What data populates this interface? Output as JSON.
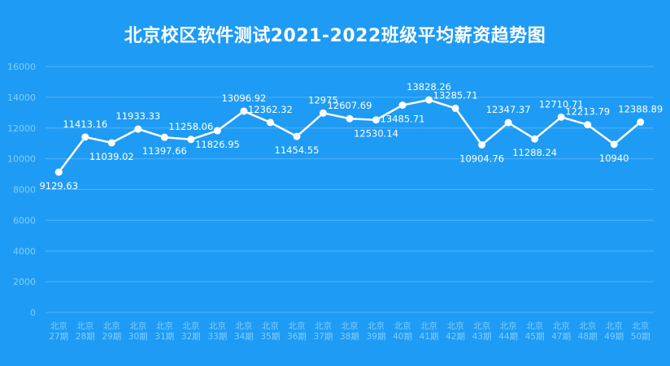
{
  "title": "北京校区软件测试2021-2022班级平均薪资趋势图",
  "colors": {
    "background": "#1E9BF5",
    "line": "#FFFFFF",
    "grid": "#4FB5FA",
    "axis_text": "#7FD0FF",
    "data_label": "#FFFFFF"
  },
  "chart_data": {
    "type": "line",
    "title": "北京校区软件测试2021-2022班级平均薪资趋势图",
    "categories": [
      [
        "北京",
        "27期"
      ],
      [
        "北京",
        "28期"
      ],
      [
        "北京",
        "29期"
      ],
      [
        "北京",
        "30期"
      ],
      [
        "北京",
        "31期"
      ],
      [
        "北京",
        "32期"
      ],
      [
        "北京",
        "33期"
      ],
      [
        "北京",
        "34期"
      ],
      [
        "北京",
        "35期"
      ],
      [
        "北京",
        "36期"
      ],
      [
        "北京",
        "37期"
      ],
      [
        "北京",
        "38期"
      ],
      [
        "北京",
        "39期"
      ],
      [
        "北京",
        "40期"
      ],
      [
        "北京",
        "41期"
      ],
      [
        "北京",
        "42期"
      ],
      [
        "北京",
        "43期"
      ],
      [
        "北京",
        "44期"
      ],
      [
        "北京",
        "45期"
      ],
      [
        "北京",
        "47期"
      ],
      [
        "北京",
        "48期"
      ],
      [
        "北京",
        "49期"
      ],
      [
        "北京",
        "50期"
      ]
    ],
    "values": [
      9129.63,
      11413.16,
      11039.02,
      11933.33,
      11397.66,
      11258.06,
      11826.95,
      13096.92,
      12362.32,
      11454.55,
      12975,
      12607.69,
      12530.14,
      13485.71,
      13828.26,
      13285.71,
      10904.76,
      12347.37,
      11288.24,
      12710.71,
      12213.79,
      10940,
      12388.89
    ],
    "data_labels": [
      "9129.63",
      "11413.16",
      "11039.02",
      "11933.33",
      "11397.66",
      "11258.06",
      "11826.95",
      "13096.92",
      "12362.32",
      "11454.55",
      "12975",
      "12607.69",
      "12530.14",
      "13485.71",
      "13828.26",
      "13285.71",
      "10904.76",
      "12347.37",
      "11288.24",
      "12710.71",
      "12213.79",
      "10940",
      "12388.89"
    ],
    "label_side": [
      "below",
      "above",
      "below",
      "above",
      "below",
      "above",
      "below",
      "above",
      "above",
      "below",
      "above",
      "above",
      "below",
      "below",
      "above",
      "above",
      "below",
      "above",
      "below",
      "above",
      "above",
      "below",
      "above"
    ],
    "ylim": [
      0,
      16000
    ],
    "yticks": [
      0,
      2000,
      4000,
      6000,
      8000,
      10000,
      12000,
      14000,
      16000
    ],
    "ytick_labels": [
      "0",
      "2000",
      "4000",
      "6000",
      "8000",
      "10000",
      "12000",
      "14000",
      "16000"
    ],
    "xlabel": "",
    "ylabel": "",
    "grid": true,
    "legend": "none"
  }
}
